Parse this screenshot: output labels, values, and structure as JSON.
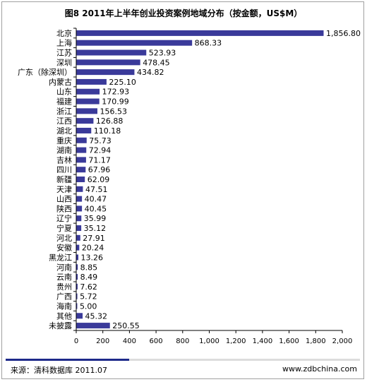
{
  "chart_data": {
    "type": "bar",
    "orientation": "horizontal",
    "title": "图8 2011年上半年创业投资案例地域分布（按金额，US$M）",
    "categories": [
      "北京",
      "上海",
      "江苏",
      "深圳",
      "广东（除深圳）",
      "内蒙古",
      "山东",
      "福建",
      "浙江",
      "江西",
      "湖北",
      "重庆",
      "湖南",
      "吉林",
      "四川",
      "新疆",
      "天津",
      "山西",
      "陕西",
      "辽宁",
      "宁夏",
      "河北",
      "安徽",
      "黑龙江",
      "河南",
      "云南",
      "贵州",
      "广西",
      "海南",
      "其他",
      "未披露"
    ],
    "values": [
      1856.8,
      868.33,
      523.93,
      478.45,
      434.82,
      225.1,
      172.93,
      170.99,
      156.53,
      126.88,
      110.18,
      75.73,
      72.94,
      71.17,
      67.96,
      62.09,
      47.51,
      40.47,
      40.45,
      35.99,
      35.12,
      27.91,
      20.24,
      13.26,
      8.85,
      8.49,
      7.62,
      5.72,
      5.0,
      45.32,
      250.55
    ],
    "value_labels": [
      "1,856.80",
      "868.33",
      "523.93",
      "478.45",
      "434.82",
      "225.10",
      "172.93",
      "170.99",
      "156.53",
      "126.88",
      "110.18",
      "75.73",
      "72.94",
      "71.17",
      "67.96",
      "62.09",
      "47.51",
      "40.47",
      "40.45",
      "35.99",
      "35.12",
      "27.91",
      "20.24",
      "13.26",
      "8.85",
      "8.49",
      "7.62",
      "5.72",
      "5.00",
      "45.32",
      "250.55"
    ],
    "xlim": [
      0,
      2000
    ],
    "xticks": [
      0,
      200,
      400,
      600,
      800,
      1000,
      1200,
      1400,
      1600,
      1800,
      2000
    ],
    "xtick_labels": [
      "0",
      "200",
      "400",
      "600",
      "800",
      "1,000",
      "1,200",
      "1,400",
      "1,600",
      "1,800",
      "2,000"
    ],
    "xlabel": "",
    "ylabel": "",
    "grid": false,
    "legend": "none",
    "bar_color": "#3a3a9a"
  },
  "footer": {
    "source": "来源：清科数据库 2011.07",
    "website": "www.zdbchina.com"
  }
}
